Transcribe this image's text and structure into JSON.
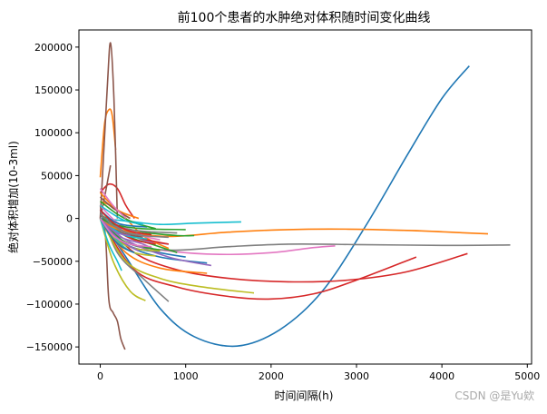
{
  "watermark": "CSDN @是Yu欸",
  "chart_data": {
    "type": "line",
    "title": "前100个患者的水肿绝对体积随时间变化曲线",
    "xlabel": "时间间隔(h)",
    "ylabel": "绝对体积增加(10-3ml)",
    "xlim": [
      -250,
      5050
    ],
    "ylim": [
      -170000,
      220000
    ],
    "x_ticks": [
      0,
      1000,
      2000,
      3000,
      4000,
      5000
    ],
    "y_ticks": [
      -150000,
      -100000,
      -50000,
      0,
      50000,
      100000,
      150000,
      200000
    ],
    "grid": false,
    "legend": "none",
    "series": [
      {
        "color": "#1f77b4",
        "x": [
          0,
          300,
          700,
          1100,
          1600,
          2100,
          2600,
          3100,
          3600,
          4000,
          4320
        ],
        "y": [
          0,
          -45000,
          -105000,
          -138000,
          -149000,
          -130000,
          -85000,
          -10000,
          75000,
          140000,
          178000
        ]
      },
      {
        "color": "#ff7f0e",
        "x": [
          0,
          50,
          100,
          140,
          180
        ],
        "y": [
          48000,
          110000,
          127000,
          120000,
          80000
        ]
      },
      {
        "color": "#ff7f0e",
        "x": [
          0,
          300,
          800,
          1500,
          2200,
          2900,
          3600,
          4200,
          4540
        ],
        "y": [
          0,
          -15000,
          -21000,
          -16000,
          -13000,
          -12500,
          -14000,
          -16500,
          -18000
        ]
      },
      {
        "color": "#2ca02c",
        "x": [
          0,
          200,
          500,
          900,
          1100
        ],
        "y": [
          5000,
          -8000,
          -16000,
          -20000,
          -20000
        ]
      },
      {
        "color": "#d62728",
        "x": [
          0,
          100,
          200,
          300,
          400
        ],
        "y": [
          30000,
          40000,
          35000,
          15000,
          0
        ]
      },
      {
        "color": "#d62728",
        "x": [
          0,
          400,
          900,
          1500,
          2000,
          2500,
          3000,
          3700
        ],
        "y": [
          0,
          -60000,
          -80000,
          -91000,
          -94000,
          -88000,
          -72000,
          -45000
        ]
      },
      {
        "color": "#d62728",
        "x": [
          0,
          400,
          900,
          1500,
          2200,
          2900,
          3600,
          4300
        ],
        "y": [
          0,
          -40000,
          -60000,
          -70000,
          -74000,
          -72000,
          -62000,
          -41000
        ]
      },
      {
        "color": "#9467bd",
        "x": [
          0,
          200,
          500,
          800
        ],
        "y": [
          10000,
          -10000,
          -25000,
          -30000
        ]
      },
      {
        "color": "#8c564b",
        "x": [
          0,
          80,
          120,
          160,
          200
        ],
        "y": [
          0,
          150000,
          205000,
          140000,
          0
        ]
      },
      {
        "color": "#8c564b",
        "x": [
          0,
          60,
          100,
          150,
          200,
          240,
          290
        ],
        "y": [
          15000,
          -20000,
          -95000,
          -110000,
          -120000,
          -140000,
          -153000
        ]
      },
      {
        "color": "#8c564b",
        "x": [
          0,
          60,
          120
        ],
        "y": [
          0,
          30000,
          62000
        ]
      },
      {
        "color": "#e377c2",
        "x": [
          0,
          300,
          800,
          1400,
          2000,
          2500,
          2750
        ],
        "y": [
          0,
          -28000,
          -38000,
          -42000,
          -40000,
          -34000,
          -32000
        ]
      },
      {
        "color": "#7f7f7f",
        "x": [
          0,
          300,
          800,
          1500,
          2200,
          3000,
          4000,
          4800
        ],
        "y": [
          0,
          -28000,
          -37000,
          -33000,
          -30000,
          -30500,
          -31500,
          -31000
        ]
      },
      {
        "color": "#7f7f7f",
        "x": [
          0,
          200,
          500,
          800
        ],
        "y": [
          10000,
          -40000,
          -70000,
          -97000
        ]
      },
      {
        "color": "#bcbd22",
        "x": [
          0,
          300,
          700,
          1200,
          1800
        ],
        "y": [
          0,
          -50000,
          -70000,
          -80000,
          -87000
        ]
      },
      {
        "color": "#bcbd22",
        "x": [
          0,
          150,
          350,
          530
        ],
        "y": [
          0,
          -50000,
          -85000,
          -96000
        ]
      },
      {
        "color": "#17becf",
        "x": [
          0,
          300,
          700,
          1100,
          1650
        ],
        "y": [
          0,
          -3000,
          -7000,
          -5500,
          -4000
        ]
      },
      {
        "color": "#17becf",
        "x": [
          0,
          100,
          200,
          250
        ],
        "y": [
          0,
          -30000,
          -50000,
          -61000
        ]
      },
      {
        "color": "#1f77b4",
        "x": [
          0,
          300,
          700,
          1000
        ],
        "y": [
          5000,
          -30000,
          -40000,
          -45000
        ]
      },
      {
        "color": "#2ca02c",
        "x": [
          0,
          300,
          600,
          900
        ],
        "y": [
          0,
          -20000,
          -30000,
          -40000
        ]
      },
      {
        "color": "#9467bd",
        "x": [
          0,
          200,
          500,
          700
        ],
        "y": [
          0,
          -20000,
          -30000,
          -40000
        ]
      },
      {
        "color": "#ff7f0e",
        "x": [
          0,
          200,
          500,
          800
        ],
        "y": [
          20000,
          10000,
          -20000,
          -35000
        ]
      },
      {
        "color": "#1f77b4",
        "x": [
          0,
          300,
          700,
          1250
        ],
        "y": [
          0,
          -30000,
          -45000,
          -52000
        ]
      },
      {
        "color": "#ff7f0e",
        "x": [
          0,
          300,
          700,
          1250
        ],
        "y": [
          0,
          -40000,
          -58000,
          -64000
        ]
      },
      {
        "color": "#2ca02c",
        "x": [
          0,
          250,
          500,
          700
        ],
        "y": [
          0,
          -25000,
          -33000,
          -37000
        ]
      },
      {
        "color": "#d62728",
        "x": [
          0,
          200,
          500,
          800
        ],
        "y": [
          0,
          -15000,
          -24000,
          -30000
        ]
      },
      {
        "color": "#9467bd",
        "x": [
          0,
          300,
          800,
          1300
        ],
        "y": [
          0,
          -25000,
          -45000,
          -55000
        ]
      },
      {
        "color": "#8c564b",
        "x": [
          0,
          200,
          500
        ],
        "y": [
          5000,
          -15000,
          -22000
        ]
      },
      {
        "color": "#e377c2",
        "x": [
          0,
          200,
          500,
          700
        ],
        "y": [
          15000,
          -5000,
          -20000,
          -25000
        ]
      },
      {
        "color": "#7f7f7f",
        "x": [
          0,
          250,
          500,
          800
        ],
        "y": [
          0,
          -15000,
          -20000,
          -22000
        ]
      },
      {
        "color": "#bcbd22",
        "x": [
          0,
          200,
          400,
          700
        ],
        "y": [
          0,
          -25000,
          -35000,
          -38000
        ]
      },
      {
        "color": "#17becf",
        "x": [
          0,
          150,
          300,
          450
        ],
        "y": [
          0,
          -20000,
          -35000,
          -42000
        ]
      },
      {
        "color": "#1f77b4",
        "x": [
          0,
          150,
          300,
          550
        ],
        "y": [
          10000,
          -3000,
          -8000,
          -10000
        ]
      },
      {
        "color": "#ff7f0e",
        "x": [
          0,
          200,
          450
        ],
        "y": [
          30000,
          10000,
          0
        ]
      },
      {
        "color": "#2ca02c",
        "x": [
          0,
          200,
          400,
          650
        ],
        "y": [
          20000,
          5000,
          -5000,
          -12000
        ]
      },
      {
        "color": "#d62728",
        "x": [
          0,
          200,
          400,
          650
        ],
        "y": [
          0,
          -15000,
          -25000,
          -30000
        ]
      },
      {
        "color": "#9467bd",
        "x": [
          0,
          150,
          300,
          450
        ],
        "y": [
          0,
          -18000,
          -30000,
          -38000
        ]
      },
      {
        "color": "#8c564b",
        "x": [
          0,
          150,
          350
        ],
        "y": [
          25000,
          12000,
          0
        ]
      },
      {
        "color": "#e377c2",
        "x": [
          0,
          150,
          300
        ],
        "y": [
          35000,
          15000,
          0
        ]
      },
      {
        "color": "#7f7f7f",
        "x": [
          0,
          200,
          500,
          900
        ],
        "y": [
          0,
          -10000,
          -15000,
          -17000
        ]
      },
      {
        "color": "#bcbd22",
        "x": [
          0,
          200,
          400,
          650
        ],
        "y": [
          0,
          -28000,
          -40000,
          -44000
        ]
      },
      {
        "color": "#17becf",
        "x": [
          0,
          150,
          300,
          550
        ],
        "y": [
          0,
          -12000,
          -20000,
          -24000
        ]
      },
      {
        "color": "#1f77b4",
        "x": [
          0,
          120,
          250,
          400
        ],
        "y": [
          0,
          -20000,
          -33000,
          -40000
        ]
      },
      {
        "color": "#ff7f0e",
        "x": [
          0,
          100,
          250,
          400
        ],
        "y": [
          0,
          -8000,
          -14000,
          -16000
        ]
      },
      {
        "color": "#2ca02c",
        "x": [
          0,
          200,
          500,
          1000
        ],
        "y": [
          0,
          -8000,
          -12000,
          -13000
        ]
      },
      {
        "color": "#d62728",
        "x": [
          0,
          150,
          350,
          600
        ],
        "y": [
          10000,
          -5000,
          -15000,
          -19000
        ]
      },
      {
        "color": "#9467bd",
        "x": [
          0,
          100,
          200,
          350
        ],
        "y": [
          0,
          -10000,
          -17000,
          -20000
        ]
      },
      {
        "color": "#17becf",
        "x": [
          0,
          150,
          300,
          500
        ],
        "y": [
          15000,
          5000,
          -3000,
          -7000
        ]
      },
      {
        "color": "#e377c2",
        "x": [
          0,
          150,
          350,
          600
        ],
        "y": [
          0,
          -20000,
          -30000,
          -33000
        ]
      },
      {
        "color": "#7f7f7f",
        "x": [
          0,
          150,
          300,
          500
        ],
        "y": [
          5000,
          -8000,
          -16000,
          -20000
        ]
      }
    ]
  }
}
